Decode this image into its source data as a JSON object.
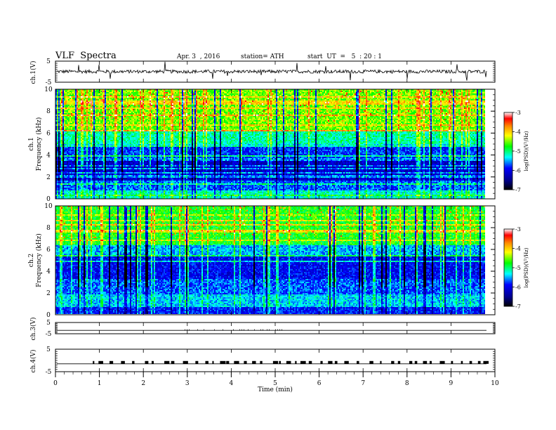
{
  "header": {
    "title": "VLF  Spectra",
    "date": "Apr. 3  , 2016",
    "station": "station= ATH",
    "start": "start  UT  =   5  : 20 : 1"
  },
  "chart_data": {
    "type": "heatmap",
    "xlabel": "Time  (min)",
    "xlim": [
      0,
      10
    ],
    "xticks": [
      "0",
      "1",
      "2",
      "3",
      "4",
      "5",
      "6",
      "7",
      "8",
      "9",
      "10"
    ],
    "panels": [
      {
        "id": "ch1-waveform",
        "type": "line",
        "ylabel": "ch.1(V)",
        "ylim": [
          -5,
          5
        ],
        "yticks": [
          "5",
          "-5"
        ]
      },
      {
        "id": "ch1-spectrogram",
        "type": "heatmap",
        "ylabel_top": "ch.1",
        "ylabel": "Frequency  (kHz)",
        "ylim": [
          0,
          10
        ],
        "yticks": [
          "0",
          "2",
          "4",
          "6",
          "8",
          "10"
        ],
        "data_end_min": 9.8,
        "colorbar": {
          "label": "log(PSD)(V²/Hz)",
          "range": [
            -7,
            -3
          ],
          "ticks": [
            "-3",
            "-4",
            "-5",
            "-6",
            "-7"
          ]
        }
      },
      {
        "id": "ch2-spectrogram",
        "type": "heatmap",
        "ylabel_top": "ch.2",
        "ylabel": "Frequency  (kHz)",
        "ylim": [
          0,
          10
        ],
        "yticks": [
          "0",
          "2",
          "4",
          "6",
          "8",
          "10"
        ],
        "data_end_min": 9.8,
        "colorbar": {
          "label": "log(PSD)(V²/Hz)",
          "range": [
            -7,
            -3
          ],
          "ticks": [
            "-3",
            "-4",
            "-5",
            "-6",
            "-7"
          ]
        }
      },
      {
        "id": "ch3-waveform",
        "type": "line",
        "ylabel": "ch.3(V)",
        "ylim": [
          -5,
          5
        ],
        "yticks": [
          "5",
          "-5"
        ]
      },
      {
        "id": "ch4-waveform",
        "type": "line",
        "ylabel": "ch.4(V)",
        "ylim": [
          -5,
          5
        ],
        "yticks": [
          "5",
          "-5"
        ]
      }
    ]
  }
}
